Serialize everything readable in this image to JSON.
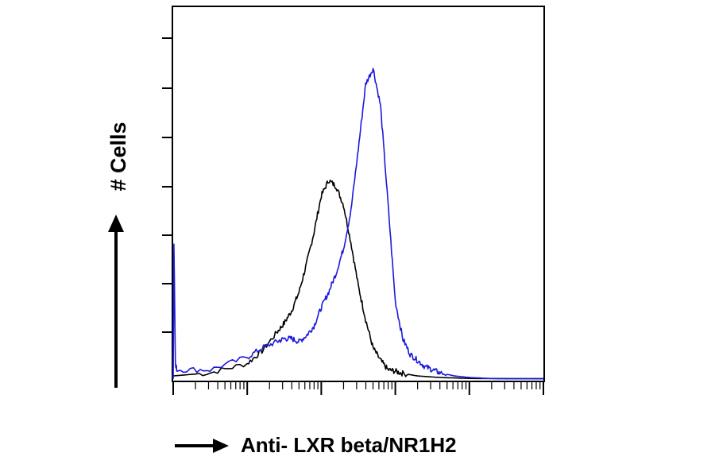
{
  "chart_data": {
    "type": "line",
    "title": "",
    "xlabel": "Anti- LXR beta/NR1H2",
    "ylabel": "# Cells",
    "x_scale": "log",
    "xlim": [
      0.0,
      1.0
    ],
    "ylim": [
      0.0,
      1.0
    ],
    "grid": false,
    "legend": "none",
    "series": [
      {
        "color": "#000000",
        "x": [
          0.0,
          0.1,
          0.2,
          0.24,
          0.28,
          0.3,
          0.32,
          0.34,
          0.36,
          0.38,
          0.4,
          0.42,
          0.44,
          0.46,
          0.48,
          0.5,
          0.52,
          0.54,
          0.56,
          0.58,
          0.6,
          0.62,
          0.66,
          0.72,
          0.8,
          1.0
        ],
        "y": [
          0.01,
          0.02,
          0.05,
          0.09,
          0.15,
          0.18,
          0.22,
          0.28,
          0.37,
          0.47,
          0.59,
          0.64,
          0.62,
          0.56,
          0.44,
          0.3,
          0.19,
          0.1,
          0.06,
          0.03,
          0.025,
          0.018,
          0.01,
          0.005,
          0.002,
          0.001
        ]
      },
      {
        "color": "#1a1adb",
        "x": [
          0.0,
          0.002,
          0.006,
          0.01,
          0.1,
          0.2,
          0.24,
          0.28,
          0.3,
          0.32,
          0.34,
          0.36,
          0.38,
          0.4,
          0.42,
          0.44,
          0.46,
          0.48,
          0.5,
          0.52,
          0.54,
          0.56,
          0.58,
          0.6,
          0.62,
          0.64,
          0.66,
          0.68,
          0.7,
          0.72,
          0.76,
          0.8,
          0.85,
          0.9,
          1.0
        ],
        "y": [
          0.0,
          0.44,
          0.05,
          0.03,
          0.03,
          0.07,
          0.1,
          0.12,
          0.13,
          0.13,
          0.12,
          0.14,
          0.17,
          0.23,
          0.28,
          0.34,
          0.42,
          0.54,
          0.74,
          0.95,
          1.0,
          0.88,
          0.57,
          0.25,
          0.13,
          0.08,
          0.06,
          0.04,
          0.03,
          0.02,
          0.01,
          0.005,
          0.002,
          0.001,
          0.001
        ]
      }
    ]
  },
  "colors": {
    "axis": "#000000",
    "arrow": "#000000"
  }
}
